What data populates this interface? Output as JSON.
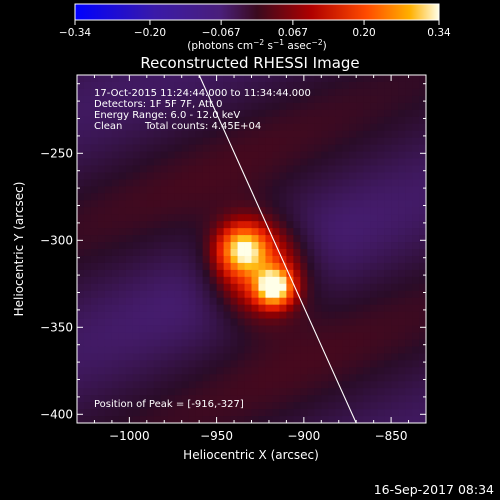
{
  "chart_data": {
    "type": "heatmap",
    "title": "Reconstructed RHESSI Image",
    "xlabel": "Heliocentric X (arcsec)",
    "ylabel": "Heliocentric Y (arcsec)",
    "xlim": [
      -1030,
      -830
    ],
    "ylim": [
      -405,
      -205
    ],
    "x_ticks": [
      -1000,
      -950,
      -900,
      -850
    ],
    "x_tick_labels": [
      "−1000",
      "−950",
      "−900",
      "−850"
    ],
    "y_ticks": [
      -250,
      -300,
      -350,
      -400
    ],
    "y_tick_labels": [
      "−250",
      "−300",
      "−350",
      "−400"
    ],
    "colorbar": {
      "range": [
        -0.34,
        0.34
      ],
      "ticks": [
        -0.34,
        -0.2,
        -0.067,
        0.067,
        0.2,
        0.34
      ],
      "tick_labels": [
        "−0.34",
        "−0.20",
        "−0.067",
        "0.067",
        "0.20",
        "0.34"
      ],
      "label_main": "(photons cm",
      "label_exp1": "−2",
      "label_mid": " s",
      "label_exp2": "−1",
      "label_mid2": " asec",
      "label_exp3": "−2",
      "label_end": ")"
    },
    "annotations": {
      "time_range": "17-Oct-2015 11:24:44.000 to 11:34:44.000",
      "detectors": "Detectors: 1F 5F 7F, Att 0",
      "energy": "Energy Range: 6.0 - 12.0 keV",
      "method_label": "Clean",
      "counts": "Total counts: 4.45E+04",
      "peak": "Position of Peak = [-916,-327]"
    },
    "peak_position": [
      -916,
      -327
    ],
    "sources": [
      {
        "x": -917,
        "y": -327,
        "amplitude": 0.34,
        "sigma": 7
      },
      {
        "x": -935,
        "y": -305,
        "amplitude": 0.26,
        "sigma": 9
      },
      {
        "x": -926,
        "y": -316,
        "amplitude": 0.22,
        "sigma": 18
      }
    ],
    "limb_line": {
      "x1": -960,
      "y1": -205,
      "x2": -870,
      "y2": -405
    },
    "footer": "16-Sep-2017 08:34"
  }
}
